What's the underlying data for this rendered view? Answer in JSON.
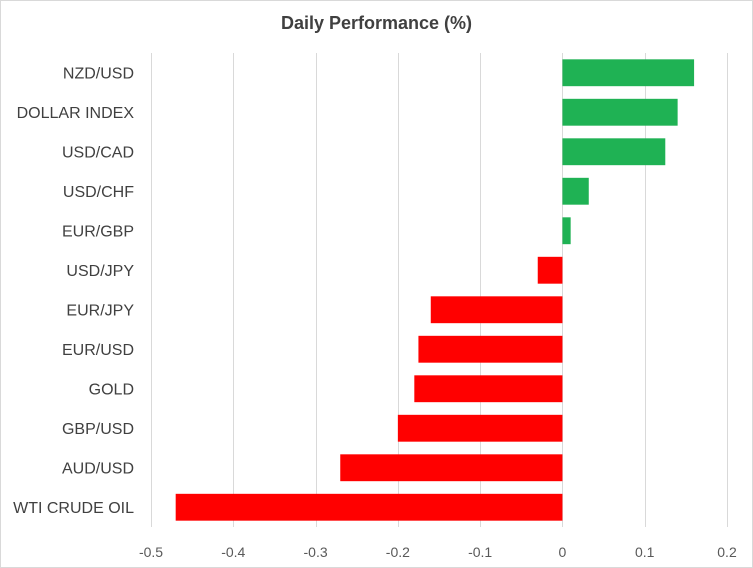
{
  "chart_data": {
    "type": "bar",
    "orientation": "horizontal",
    "title": "Daily Performance (%)",
    "xlabel": "",
    "ylabel": "",
    "xlim": [
      -0.5,
      0.2
    ],
    "x_ticks": [
      -0.5,
      -0.4,
      -0.3,
      -0.2,
      -0.1,
      0,
      0.1,
      0.2
    ],
    "x_tick_labels": [
      "-0.5",
      "-0.4",
      "-0.3",
      "-0.2",
      "-0.1",
      "0",
      "0.1",
      "0.2"
    ],
    "grid": "vertical",
    "legend": "none",
    "categories": [
      "NZD/USD",
      "DOLLAR INDEX",
      "USD/CAD",
      "USD/CHF",
      "EUR/GBP",
      "USD/JPY",
      "EUR/JPY",
      "EUR/USD",
      "GOLD",
      "GBP/USD",
      "AUD/USD",
      "WTI CRUDE OIL"
    ],
    "values": [
      0.16,
      0.14,
      0.125,
      0.032,
      0.01,
      -0.03,
      -0.16,
      -0.175,
      -0.18,
      -0.2,
      -0.27,
      -0.47
    ],
    "colors": {
      "positive": "#1fb254",
      "negative": "#ff0000",
      "text": "#404040",
      "tick_text": "#595959",
      "grid": "#d9d9d9"
    }
  }
}
